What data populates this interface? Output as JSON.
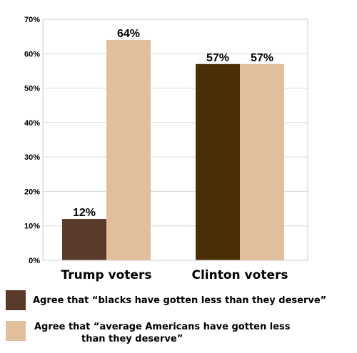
{
  "chart_data": {
    "type": "bar",
    "categories": [
      "Trump voters",
      "Clinton voters"
    ],
    "series": [
      {
        "name": "Agree that “blacks have gotten less than they deserve”",
        "values": [
          12,
          57
        ],
        "colors": [
          "#5a3a2a",
          "#4a2e05"
        ]
      },
      {
        "name": "Agree that “average Americans have gotten less than they deserve”",
        "values": [
          64,
          57
        ],
        "colors": [
          "#e1bf9c",
          "#e1bf9c"
        ]
      }
    ],
    "data_labels": [
      [
        "12%",
        "57%"
      ],
      [
        "64%",
        "57%"
      ]
    ],
    "ylim": [
      0,
      70
    ],
    "yticks": [
      "0%",
      "10%",
      "20%",
      "30%",
      "40%",
      "50%",
      "60%",
      "70%"
    ],
    "ytick_values": [
      0,
      10,
      20,
      30,
      40,
      50,
      60,
      70
    ],
    "grid": true,
    "legend_position": "bottom"
  },
  "legend": {
    "items": [
      {
        "line1": "Agree that “blacks have gotten less than they deserve”",
        "line2": "",
        "color": "#5a3a2a"
      },
      {
        "line1": "Agree that “average Americans have gotten less",
        "line2": "than they deserve”",
        "color": "#e1bf9c"
      }
    ]
  }
}
